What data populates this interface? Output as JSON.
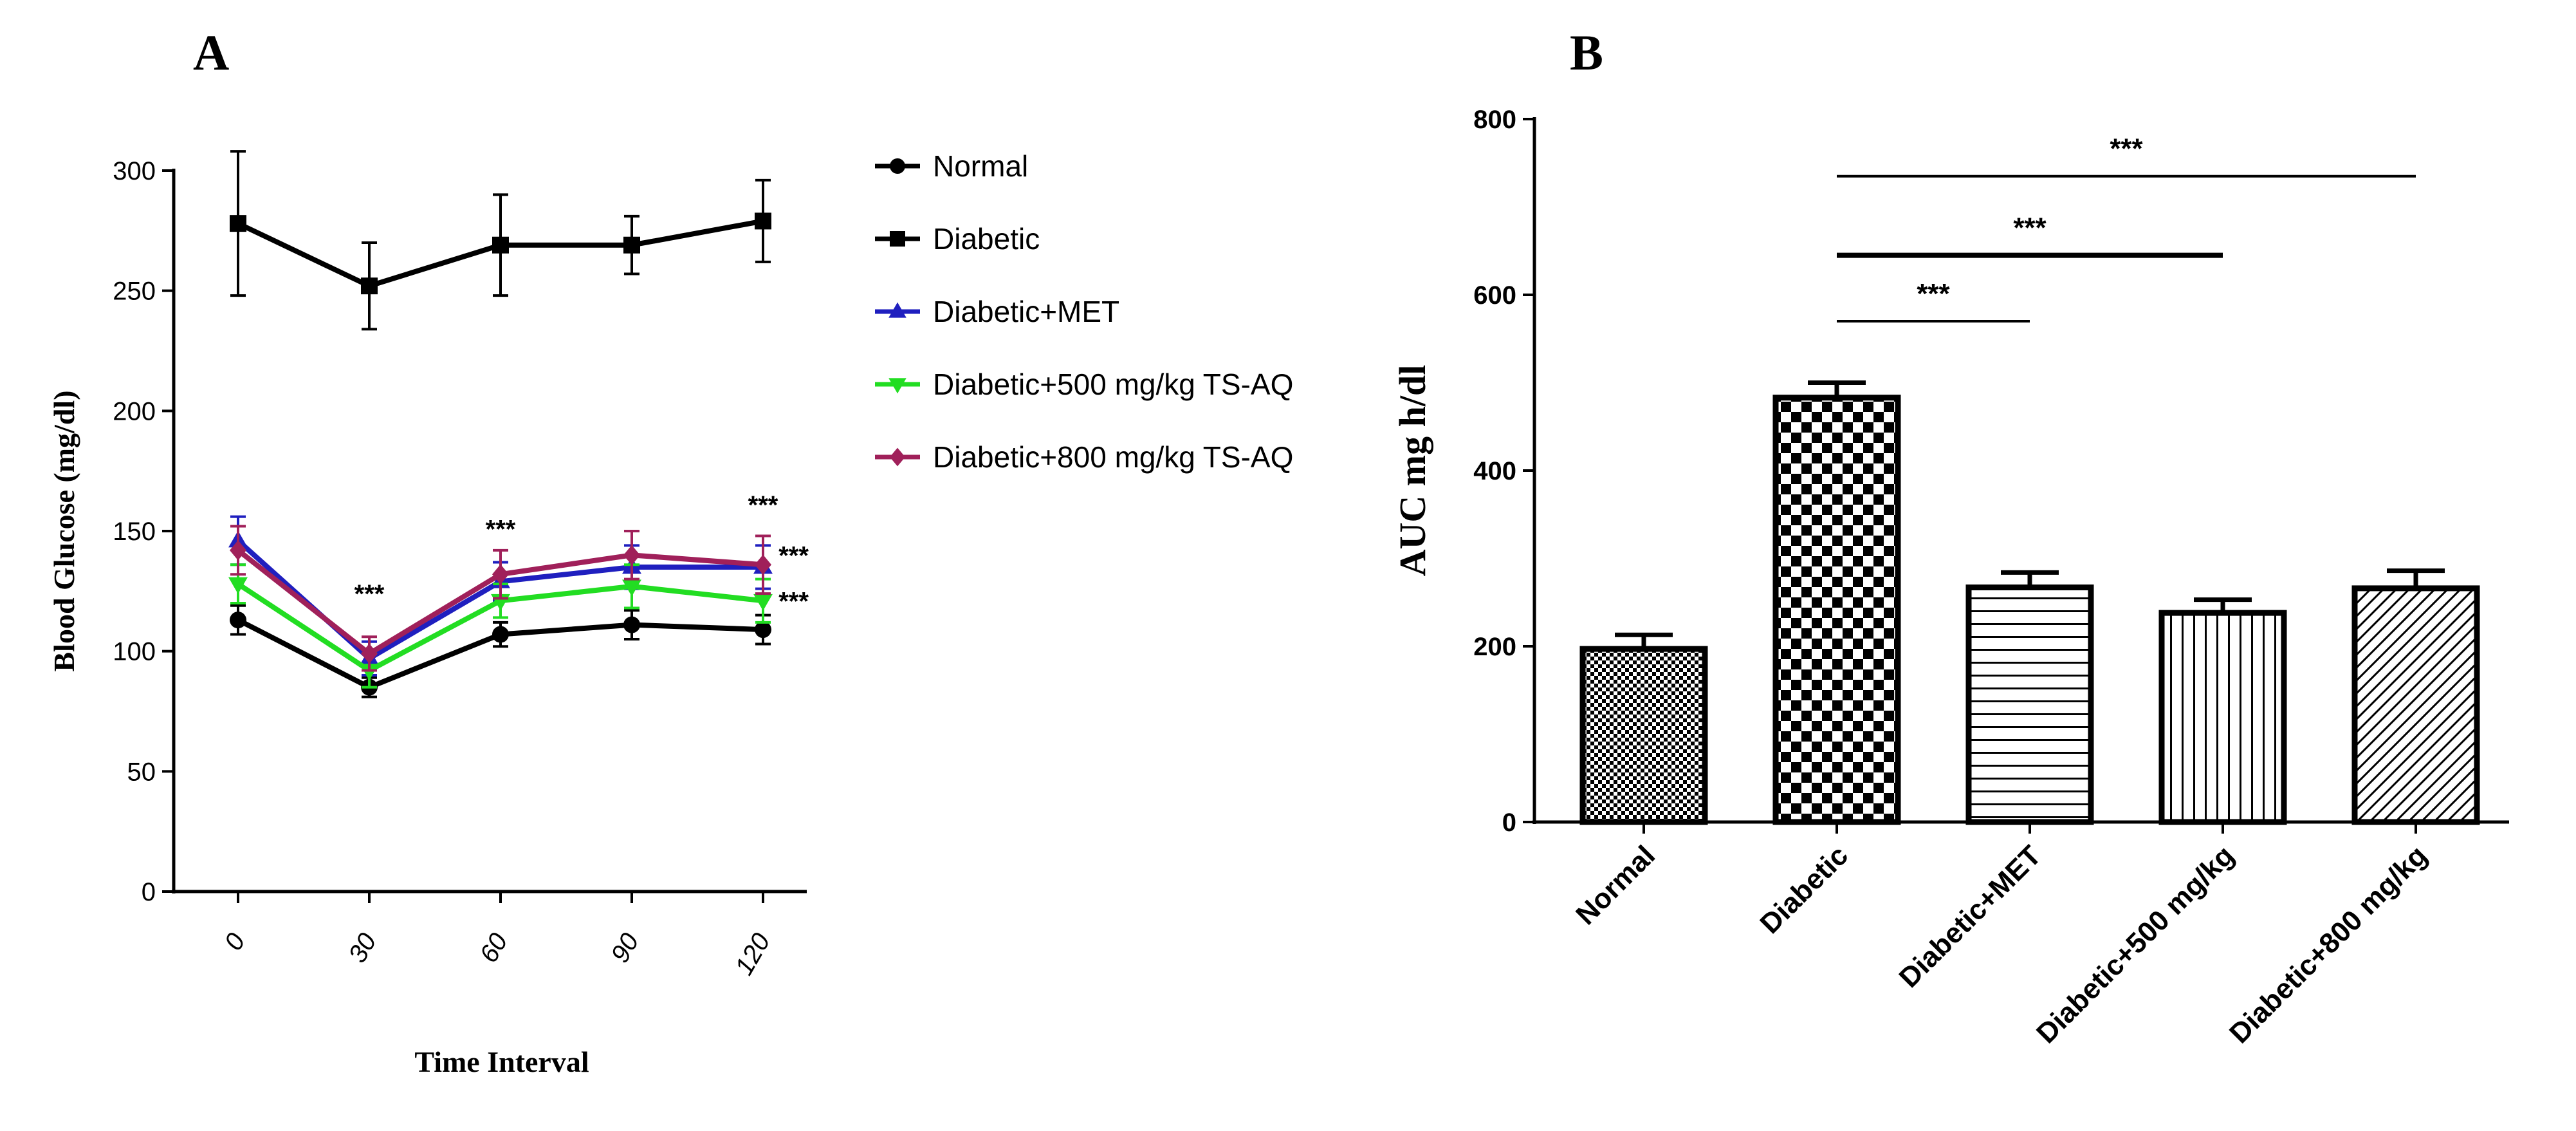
{
  "chart_data": [
    {
      "panel": "A",
      "type": "line",
      "title": "",
      "xlabel": "Time Interval",
      "ylabel": "Blood Glucose (mg/dl)",
      "x": [
        0,
        30,
        60,
        90,
        120
      ],
      "x_tick_labels": [
        "0",
        "30",
        "60",
        "90",
        "120"
      ],
      "ylim": [
        0,
        300
      ],
      "y_ticks": [
        0,
        50,
        100,
        150,
        200,
        250,
        300
      ],
      "grid": false,
      "legend_position": "right",
      "series": [
        {
          "name": "Normal",
          "color": "#000000",
          "marker": "circle",
          "values": [
            113,
            85,
            107,
            111,
            109
          ],
          "errors": [
            6,
            4,
            5,
            6,
            6
          ]
        },
        {
          "name": "Diabetic",
          "color": "#000000",
          "marker": "square",
          "values": [
            278,
            252,
            269,
            269,
            279
          ],
          "errors": [
            30,
            18,
            21,
            12,
            17
          ]
        },
        {
          "name": "Diabetic+MET",
          "color": "#1f1fbf",
          "marker": "triangle-up",
          "values": [
            146,
            97,
            129,
            135,
            135
          ],
          "errors": [
            10,
            7,
            8,
            9,
            9
          ]
        },
        {
          "name": "Diabetic+500 mg/kg TS-AQ",
          "color": "#22dd22",
          "marker": "triangle-down",
          "values": [
            128,
            92,
            121,
            127,
            121
          ],
          "errors": [
            8,
            7,
            7,
            9,
            9
          ]
        },
        {
          "name": "Diabetic+800 mg/kg TS-AQ",
          "color": "#a0205a",
          "marker": "diamond",
          "values": [
            142,
            99,
            132,
            140,
            136
          ],
          "errors": [
            10,
            7,
            10,
            10,
            12
          ]
        }
      ],
      "annotations": [
        {
          "text": "***",
          "x": 30,
          "y": 124
        },
        {
          "text": "***",
          "x": 60,
          "y": 151
        },
        {
          "text": "***",
          "x": 120,
          "y": 161
        },
        {
          "text": "***",
          "x": 127,
          "y": 140
        },
        {
          "text": "***",
          "x": 127,
          "y": 121
        }
      ]
    },
    {
      "panel": "B",
      "type": "bar",
      "title": "",
      "xlabel": "",
      "ylabel": "AUC mg h/dl",
      "categories": [
        "Normal",
        "Diabetic",
        "Diabetic+MET",
        "Diabetic+500 mg/kg",
        "Diabetic+800 mg/kg"
      ],
      "values": [
        197,
        483,
        267,
        238,
        266
      ],
      "errors": [
        16,
        17,
        17,
        15,
        20
      ],
      "patterns": [
        "fine-checker",
        "coarse-checker",
        "horizontal-lines",
        "vertical-lines",
        "diagonal-lines"
      ],
      "ylim": [
        0,
        800
      ],
      "y_ticks": [
        0,
        200,
        400,
        600,
        800
      ],
      "grid": false,
      "significance": [
        {
          "from": 1,
          "to": 2,
          "y": 570,
          "text": "***"
        },
        {
          "from": 1,
          "to": 3,
          "y": 645,
          "text": "***"
        },
        {
          "from": 1,
          "to": 4,
          "y": 735,
          "text": "***"
        }
      ]
    }
  ]
}
